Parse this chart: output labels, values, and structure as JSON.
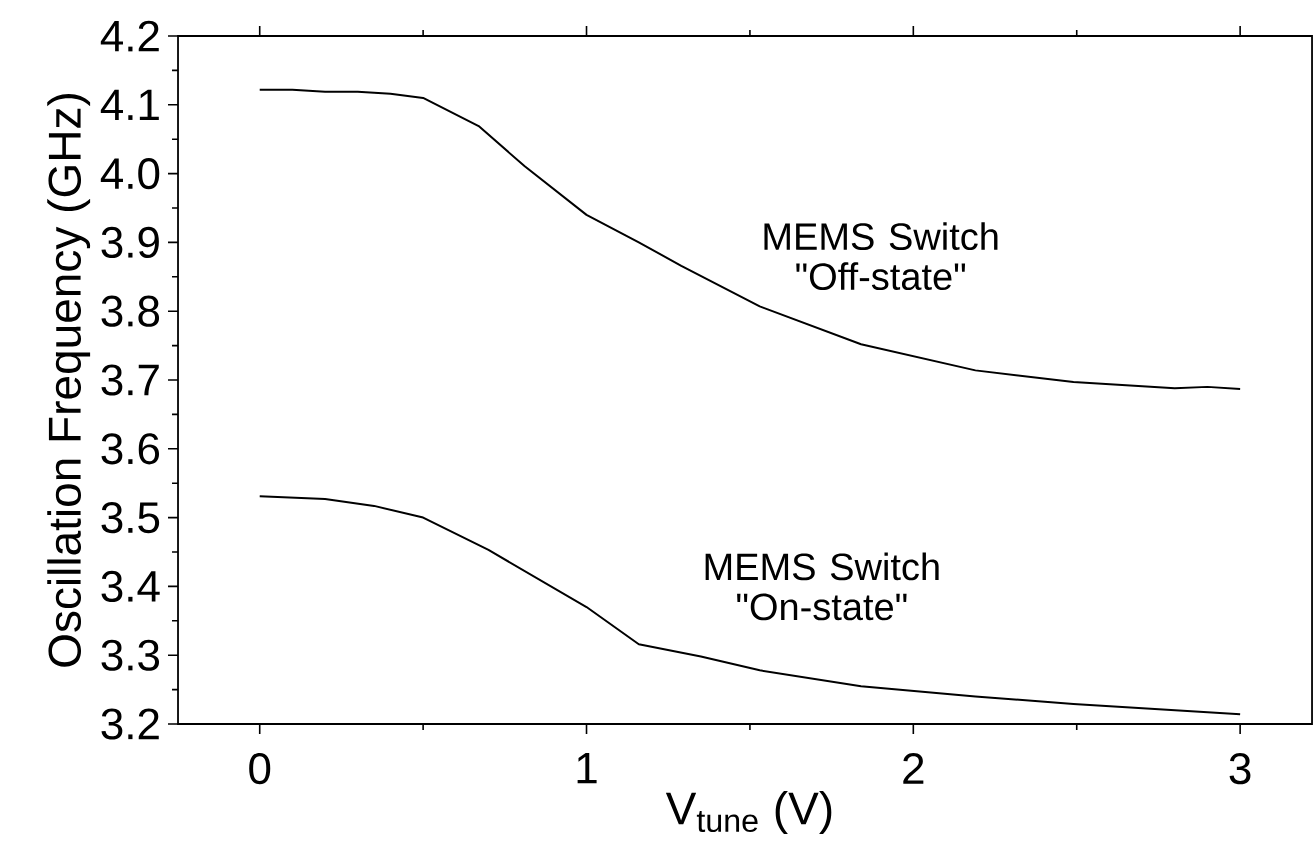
{
  "chart_data": {
    "type": "line",
    "xlabel": "V$_{tune}$ (V)",
    "ylabel": "Oscillation Frequency (GHz)",
    "xlim": [
      -0.25,
      3.22
    ],
    "ylim": [
      3.2,
      4.2
    ],
    "xticks": [
      0,
      1,
      2,
      3
    ],
    "yticks": [
      {
        "value": 3.2,
        "label": "3.2"
      },
      {
        "value": 3.3,
        "label": "3.3"
      },
      {
        "value": 3.4,
        "label": "3.4"
      },
      {
        "value": 3.5,
        "label": "3.5"
      },
      {
        "value": 3.6,
        "label": "3.6"
      },
      {
        "value": 3.7,
        "label": "3.7"
      },
      {
        "value": 3.8,
        "label": "3.8"
      },
      {
        "value": 3.9,
        "label": "3.9"
      },
      {
        "value": 4.0,
        "label": "4.0"
      },
      {
        "value": 4.1,
        "label": "4.1"
      },
      {
        "value": 4.2,
        "label": "4.2"
      }
    ],
    "series": [
      {
        "color": "#000000",
        "x": [
          0,
          0.1,
          0.2,
          0.3,
          0.4,
          0.5,
          0.67,
          0.81,
          1.0,
          1.16,
          1.29,
          1.53,
          1.84,
          2.19,
          2.49,
          2.8,
          2.9,
          3.0
        ],
        "values": [
          4.122,
          4.122,
          4.119,
          4.119,
          4.116,
          4.11,
          4.069,
          4.011,
          3.94,
          3.9,
          3.866,
          3.807,
          3.752,
          3.714,
          3.697,
          3.688,
          3.69,
          3.687
        ]
      },
      {
        "color": "#000000",
        "x": [
          0,
          0.2,
          0.35,
          0.5,
          0.7,
          1.0,
          1.16,
          1.35,
          1.53,
          1.84,
          2.19,
          2.49,
          3.0
        ],
        "values": [
          3.531,
          3.527,
          3.517,
          3.5,
          3.453,
          3.37,
          3.316,
          3.298,
          3.278,
          3.255,
          3.24,
          3.229,
          3.214
        ]
      }
    ],
    "annotations": [
      "MEMS Switch \"Off-state\"",
      "MEMS Switch \"On-state\""
    ],
    "marker": "none",
    "line_style": "solid"
  }
}
